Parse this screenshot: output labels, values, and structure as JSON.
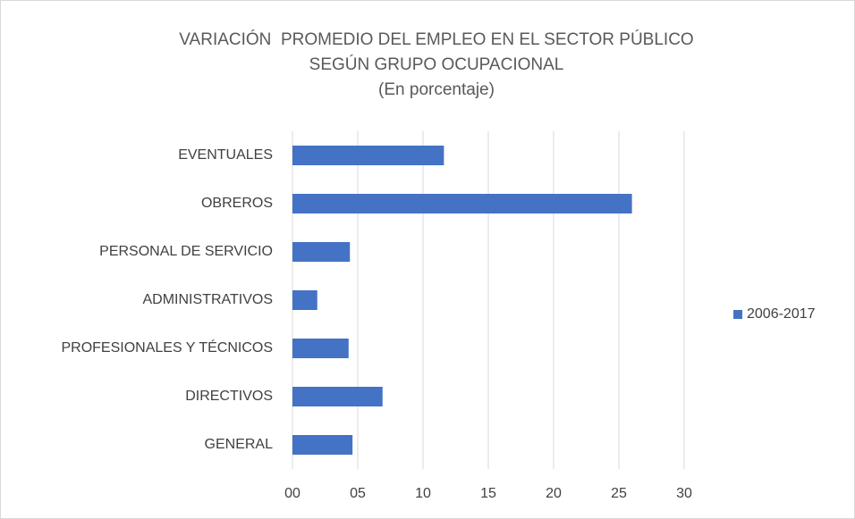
{
  "chart_data": {
    "type": "bar",
    "orientation": "horizontal",
    "title": [
      "VARIACIÓN  PROMEDIO DEL EMPLEO EN EL SECTOR PÚBLICO",
      "SEGÚN GRUPO OCUPACIONAL"
    ],
    "subtitle": "(En porcentaje)",
    "categories": [
      "EVENTUALES",
      "OBREROS",
      "PERSONAL DE SERVICIO",
      "ADMINISTRATIVOS",
      "PROFESIONALES Y TÉCNICOS",
      "DIRECTIVOS",
      "GENERAL"
    ],
    "series": [
      {
        "name": "2006-2017",
        "color": "#4472c4",
        "values": [
          11.6,
          26.0,
          4.4,
          1.9,
          4.3,
          6.9,
          4.6
        ]
      }
    ],
    "xlim": [
      0,
      30
    ],
    "xticks": [
      {
        "value": 0,
        "label": "00"
      },
      {
        "value": 5,
        "label": "05"
      },
      10,
      15,
      20,
      25,
      30
    ],
    "grid": true,
    "legend": "right"
  }
}
